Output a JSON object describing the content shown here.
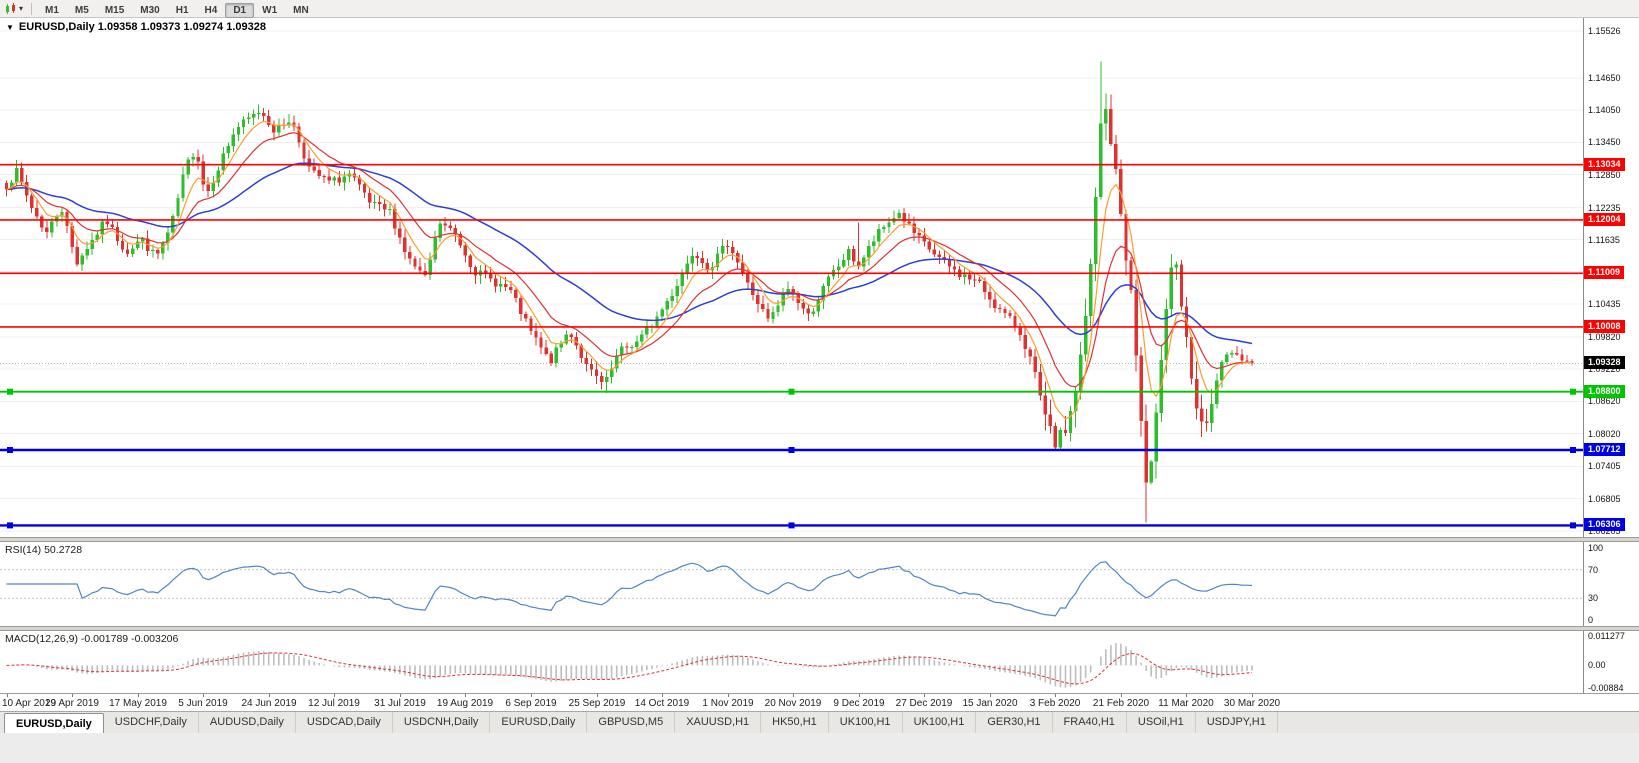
{
  "icons": {
    "dropdown_triangle": "▼",
    "toolbar_dropdown": "▾"
  },
  "toolbar": {
    "timeframes": [
      "M1",
      "M5",
      "M15",
      "M30",
      "H1",
      "H4",
      "D1",
      "W1",
      "MN"
    ],
    "active_timeframe": "D1"
  },
  "chart": {
    "header": "EURUSD,Daily 1.09358 1.09373 1.09274 1.09328",
    "rsi_label": "RSI(14) 50.2728",
    "macd_label": "MACD(12,26,9) -0.001789 -0.003206"
  },
  "x_axis": {
    "labels": [
      "10 Apr 2019",
      "29 Apr 2019",
      "17 May 2019",
      "5 Jun 2019",
      "24 Jun 2019",
      "12 Jul 2019",
      "31 Jul 2019",
      "19 Aug 2019",
      "6 Sep 2019",
      "25 Sep 2019",
      "14 Oct 2019",
      "1 Nov 2019",
      "20 Nov 2019",
      "9 Dec 2019",
      "27 Dec 2019",
      "15 Jan 2020",
      "3 Feb 2020",
      "21 Feb 2020",
      "11 Mar 2020",
      "30 Mar 2020"
    ]
  },
  "bottom_tabs": {
    "active_index": 0,
    "items": [
      "EURUSD,Daily",
      "USDCHF,Daily",
      "AUDUSD,Daily",
      "USDCAD,Daily",
      "USDCNH,Daily",
      "EURUSD,Daily",
      "GBPUSD,M5",
      "XAUUSD,H1",
      "HK50,H1",
      "UK100,H1",
      "UK100,H1",
      "GER30,H1",
      "FRA40,H1",
      "USOil,H1",
      "USDJPY,H1"
    ],
    "background": "#e9e7e3"
  },
  "chart_data": {
    "type": "candlestick",
    "symbol": "EURUSD",
    "timeframe": "Daily",
    "quote": {
      "open": "1.09358",
      "high": "1.09373",
      "low": "1.09274",
      "close": "1.09328"
    },
    "current_price": {
      "value": 1.09328,
      "label": "1.09328",
      "tag_color": "#000000"
    },
    "colors": {
      "up": "#2dbd2d",
      "down": "#e03131",
      "background": "#ffffff",
      "grid": "#f0f0f0",
      "bid_line": "#b4b4b4"
    },
    "y_axis": {
      "top_price": 1.1577,
      "bottom_price": 1.0609,
      "ticks": [
        {
          "v": 1.15526,
          "label": "1.15526"
        },
        {
          "v": 1.1465,
          "label": "1.14650"
        },
        {
          "v": 1.1405,
          "label": "1.14050"
        },
        {
          "v": 1.1345,
          "label": "1.13450"
        },
        {
          "v": 1.1285,
          "label": "1.12850"
        },
        {
          "v": 1.12235,
          "label": "1.12235"
        },
        {
          "v": 1.11635,
          "label": "1.11635"
        },
        {
          "v": 1.11035,
          "label": "1.11035"
        },
        {
          "v": 1.10435,
          "label": "1.10435"
        },
        {
          "v": 1.0982,
          "label": "1.09820"
        },
        {
          "v": 1.0922,
          "label": "1.09220"
        },
        {
          "v": 1.0862,
          "label": "1.08620"
        },
        {
          "v": 1.0802,
          "label": "1.08020"
        },
        {
          "v": 1.07405,
          "label": "1.07405"
        },
        {
          "v": 1.06805,
          "label": "1.06805"
        },
        {
          "v": 1.06205,
          "label": "1.06205"
        }
      ]
    },
    "hlines": [
      {
        "price": 1.13034,
        "label": "1.13034",
        "color": "#ff0000",
        "width": 1.6,
        "selected": false
      },
      {
        "price": 1.12004,
        "label": "1.12004",
        "color": "#ff0000",
        "width": 1.6,
        "selected": false
      },
      {
        "price": 1.11009,
        "label": "1.11009",
        "color": "#ff0000",
        "width": 1.6,
        "selected": false
      },
      {
        "price": 1.10008,
        "label": "1.10008",
        "color": "#ff0000",
        "width": 1.6,
        "selected": false
      },
      {
        "price": 1.088,
        "label": "1.08800",
        "color": "#00c400",
        "width": 1.8,
        "selected": true
      },
      {
        "price": 1.07712,
        "label": "1.07712",
        "color": "#0000e6",
        "width": 2.4,
        "selected": true
      },
      {
        "price": 1.06306,
        "label": "1.06306",
        "color": "#0000e6",
        "width": 2.4,
        "selected": true
      }
    ],
    "candles": {
      "count": 248,
      "area_fraction": 0.79,
      "seed": 7,
      "price_path": [
        [
          0.0,
          1.1265
        ],
        [
          0.008,
          1.129
        ],
        [
          0.02,
          1.1225
        ],
        [
          0.032,
          1.1175
        ],
        [
          0.044,
          1.1225
        ],
        [
          0.056,
          1.112
        ],
        [
          0.068,
          1.116
        ],
        [
          0.08,
          1.12
        ],
        [
          0.096,
          1.114
        ],
        [
          0.108,
          1.1165
        ],
        [
          0.12,
          1.113
        ],
        [
          0.132,
          1.1185
        ],
        [
          0.144,
          1.13
        ],
        [
          0.152,
          1.1335
        ],
        [
          0.16,
          1.1245
        ],
        [
          0.172,
          1.131
        ],
        [
          0.184,
          1.137
        ],
        [
          0.204,
          1.1405
        ],
        [
          0.216,
          1.1365
        ],
        [
          0.228,
          1.139
        ],
        [
          0.244,
          1.129
        ],
        [
          0.26,
          1.127
        ],
        [
          0.276,
          1.1285
        ],
        [
          0.292,
          1.123
        ],
        [
          0.308,
          1.1215
        ],
        [
          0.322,
          1.113
        ],
        [
          0.336,
          1.109
        ],
        [
          0.348,
          1.1195
        ],
        [
          0.36,
          1.1175
        ],
        [
          0.376,
          1.1105
        ],
        [
          0.392,
          1.1085
        ],
        [
          0.404,
          1.107
        ],
        [
          0.42,
          1.0995
        ],
        [
          0.436,
          1.0935
        ],
        [
          0.452,
          1.0995
        ],
        [
          0.466,
          1.0925
        ],
        [
          0.48,
          1.089
        ],
        [
          0.492,
          1.0955
        ],
        [
          0.508,
          1.0975
        ],
        [
          0.524,
          1.1025
        ],
        [
          0.536,
          1.107
        ],
        [
          0.552,
          1.1145
        ],
        [
          0.564,
          1.111
        ],
        [
          0.58,
          1.116
        ],
        [
          0.596,
          1.1075
        ],
        [
          0.612,
          1.101
        ],
        [
          0.628,
          1.1075
        ],
        [
          0.644,
          1.102
        ],
        [
          0.66,
          1.109
        ],
        [
          0.676,
          1.114
        ],
        [
          0.684,
          1.1115
        ],
        [
          0.7,
          1.1175
        ],
        [
          0.716,
          1.1215
        ],
        [
          0.732,
          1.1165
        ],
        [
          0.748,
          1.113
        ],
        [
          0.764,
          1.11
        ],
        [
          0.78,
          1.1085
        ],
        [
          0.796,
          1.1035
        ],
        [
          0.812,
          1.1
        ],
        [
          0.824,
          1.093
        ],
        [
          0.836,
          1.0805
        ],
        [
          0.844,
          1.078
        ],
        [
          0.852,
          1.082
        ],
        [
          0.86,
          1.09
        ],
        [
          0.868,
          1.104
        ],
        [
          0.876,
          1.128
        ],
        [
          0.88,
          1.143
        ],
        [
          0.884,
          1.139
        ],
        [
          0.888,
          1.133
        ],
        [
          0.896,
          1.119
        ],
        [
          0.904,
          1.104
        ],
        [
          0.91,
          1.085
        ],
        [
          0.916,
          1.068
        ],
        [
          0.922,
          1.079
        ],
        [
          0.928,
          1.098
        ],
        [
          0.934,
          1.111
        ],
        [
          0.938,
          1.114
        ],
        [
          0.944,
          1.103
        ],
        [
          0.952,
          1.088
        ],
        [
          0.96,
          1.0805
        ],
        [
          0.968,
          1.086
        ],
        [
          0.976,
          1.0935
        ],
        [
          0.984,
          1.0955
        ],
        [
          0.992,
          1.093
        ],
        [
          1.0,
          1.0933
        ]
      ],
      "forced": [
        {
          "t": 0.008,
          "high": 1.1312
        },
        {
          "t": 0.204,
          "high": 1.1416
        },
        {
          "t": 0.48,
          "low": 1.0878
        },
        {
          "t": 0.684,
          "high": 1.1196
        },
        {
          "t": 0.844,
          "low": 1.0769
        },
        {
          "t": 0.88,
          "high": 1.14955
        },
        {
          "t": 0.916,
          "low": 1.06364
        },
        {
          "t": 1.0,
          "close": 1.09328
        }
      ]
    },
    "indicators": {
      "ma_fast": {
        "type": "ema",
        "period": 6,
        "color": "#ff9c2e"
      },
      "ma_mid": {
        "type": "ema",
        "period": 14,
        "color": "#e03131"
      },
      "ma_slow": {
        "type": "ema",
        "period": 40,
        "color": "#2b3fd6"
      },
      "rsi": {
        "period": 14,
        "current": 50.2728,
        "color": "#4f86c6",
        "levels": [
          {
            "v": 100,
            "label": "100",
            "dashed": false
          },
          {
            "v": 70,
            "label": "70",
            "dashed": true
          },
          {
            "v": 30,
            "label": "30",
            "dashed": true
          },
          {
            "v": 0,
            "label": "0",
            "dashed": false
          }
        ]
      },
      "macd": {
        "fast": 12,
        "slow": 26,
        "signal": 9,
        "current_macd": -0.001789,
        "current_signal": -0.003206,
        "hist_color": "#bdbdbd",
        "signal_color": "#e03131",
        "scale": [
          {
            "v": 0.011277,
            "label": "0.011277"
          },
          {
            "v": 0,
            "label": "0.00"
          },
          {
            "v": -0.00884,
            "label": "-0.00884"
          }
        ]
      }
    }
  }
}
